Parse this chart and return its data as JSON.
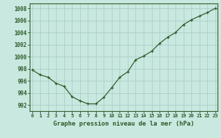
{
  "hours": [
    0,
    1,
    2,
    3,
    4,
    5,
    6,
    7,
    8,
    9,
    10,
    11,
    12,
    13,
    14,
    15,
    16,
    17,
    18,
    19,
    20,
    21,
    22,
    23
  ],
  "pressure": [
    997.8,
    997.0,
    996.6,
    995.6,
    995.1,
    993.4,
    992.7,
    992.2,
    992.2,
    993.3,
    994.9,
    996.6,
    997.5,
    999.5,
    1000.1,
    1000.9,
    1002.2,
    1003.2,
    1004.0,
    1005.3,
    1006.1,
    1006.7,
    1007.3,
    1008.0
  ],
  "line_color": "#2d5a27",
  "marker": "+",
  "bg_color": "#c8e8e0",
  "grid_color": "#aacec8",
  "ylabel_values": [
    992,
    994,
    996,
    998,
    1000,
    1002,
    1004,
    1006,
    1008
  ],
  "ylim": [
    991.0,
    1008.8
  ],
  "xlim": [
    -0.3,
    23.3
  ],
  "xlabel": "Graphe pression niveau de la mer (hPa)",
  "axis_color": "#2d5a27",
  "tick_color": "#2d5a27"
}
